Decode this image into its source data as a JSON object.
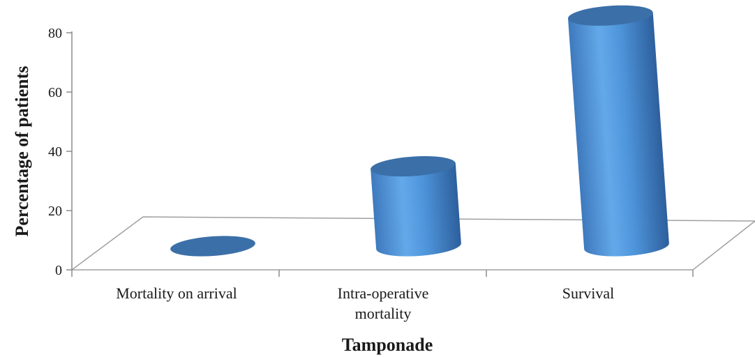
{
  "chart_data": {
    "type": "bar",
    "style": "3d-cylinder",
    "categories": [
      "Mortality on arrival",
      "Intra-operative mortality",
      "Survival"
    ],
    "category_lines": [
      [
        "Mortality on arrival"
      ],
      [
        "Intra-operative",
        "mortality"
      ],
      [
        "Survival"
      ]
    ],
    "values": [
      0,
      27,
      78
    ],
    "xlabel": "Tamponade",
    "ylabel": "Percentage of patients",
    "ylim": [
      0,
      80
    ],
    "yticks": [
      0,
      20,
      40,
      60,
      80
    ],
    "grid": false,
    "legend": "none",
    "bar_color": "#4A90D9",
    "bar_top_color": "#3B6FA8"
  }
}
